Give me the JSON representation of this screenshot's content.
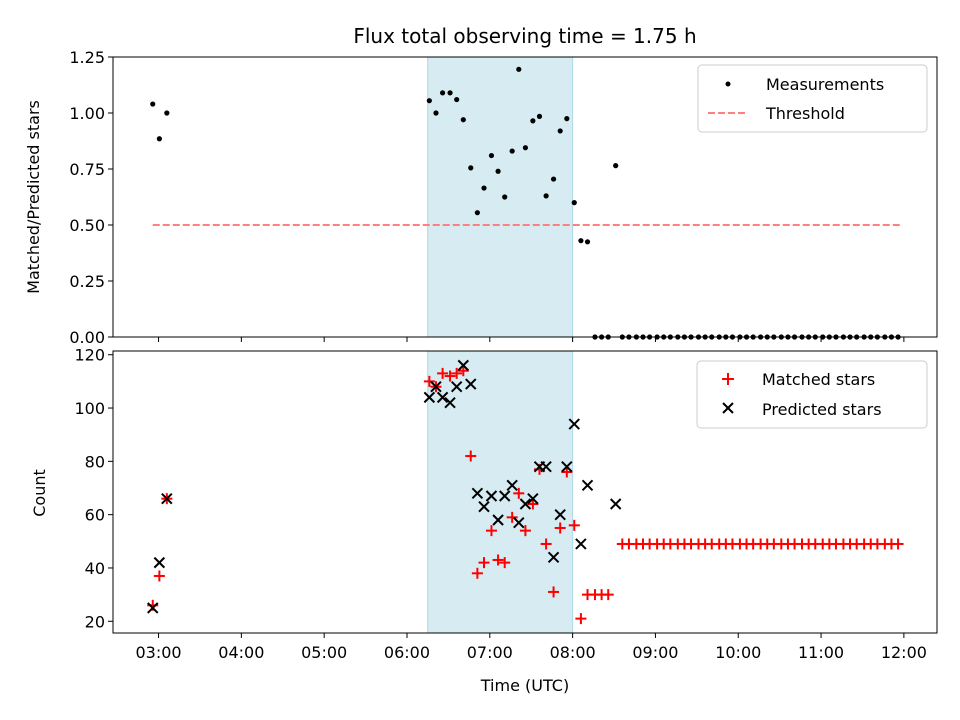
{
  "chart_data": {
    "type": "scatter",
    "title": "Flux total observing time = 1.75 h",
    "xlabel": "Time (UTC)",
    "x_axis": {
      "range_hours": [
        2.45,
        12.4
      ],
      "ticks": [
        {
          "value": 3,
          "label": "03:00"
        },
        {
          "value": 4,
          "label": "04:00"
        },
        {
          "value": 5,
          "label": "05:00"
        },
        {
          "value": 6,
          "label": "06:00"
        },
        {
          "value": 7,
          "label": "07:00"
        },
        {
          "value": 8,
          "label": "08:00"
        },
        {
          "value": 9,
          "label": "09:00"
        },
        {
          "value": 10,
          "label": "10:00"
        },
        {
          "value": 11,
          "label": "11:00"
        },
        {
          "value": 12,
          "label": "12:00"
        }
      ]
    },
    "shaded_interval_hours": [
      6.25,
      8.0
    ],
    "shade_color": "#add8e6",
    "top_panel": {
      "ylabel": "Matched/Predicted stars",
      "ylim": [
        0,
        1.25
      ],
      "yticks": [
        {
          "value": 0,
          "label": "0.00"
        },
        {
          "value": 0.25,
          "label": "0.25"
        },
        {
          "value": 0.5,
          "label": "0.50"
        },
        {
          "value": 0.75,
          "label": "0.75"
        },
        {
          "value": 1.0,
          "label": "1.00"
        },
        {
          "value": 1.25,
          "label": "1.25"
        }
      ],
      "legend": {
        "placement": "upper-right",
        "entries": [
          "Measurements",
          "Threshold"
        ]
      },
      "threshold": {
        "name": "Threshold",
        "value": 0.5,
        "x_range": [
          2.93,
          11.95
        ],
        "color": "#ff7f7f"
      },
      "measurements": {
        "name": "Measurements",
        "color": "#000000",
        "points": [
          [
            2.93,
            1.04
          ],
          [
            3.01,
            0.885
          ],
          [
            3.1,
            1.0
          ],
          [
            6.27,
            1.055
          ],
          [
            6.35,
            1.0
          ],
          [
            6.43,
            1.09
          ],
          [
            6.52,
            1.09
          ],
          [
            6.6,
            1.06
          ],
          [
            6.68,
            0.97
          ],
          [
            6.77,
            0.755
          ],
          [
            6.85,
            0.555
          ],
          [
            6.93,
            0.665
          ],
          [
            7.02,
            0.81
          ],
          [
            7.1,
            0.74
          ],
          [
            7.18,
            0.625
          ],
          [
            7.27,
            0.83
          ],
          [
            7.35,
            1.195
          ],
          [
            7.43,
            0.845
          ],
          [
            7.52,
            0.965
          ],
          [
            7.6,
            0.985
          ],
          [
            7.68,
            0.63
          ],
          [
            7.77,
            0.705
          ],
          [
            7.85,
            0.92
          ],
          [
            7.93,
            0.975
          ],
          [
            8.02,
            0.6
          ],
          [
            8.1,
            0.43
          ],
          [
            8.18,
            0.425
          ],
          [
            8.27,
            0.0
          ],
          [
            8.35,
            0.0
          ],
          [
            8.43,
            0.0
          ],
          [
            8.52,
            0.765
          ],
          [
            8.6,
            0.0
          ],
          [
            8.68,
            0.0
          ],
          [
            8.77,
            0.0
          ],
          [
            8.85,
            0.0
          ],
          [
            8.93,
            0.0
          ],
          [
            9.02,
            0.0
          ],
          [
            9.1,
            0.0
          ],
          [
            9.18,
            0.0
          ],
          [
            9.27,
            0.0
          ],
          [
            9.35,
            0.0
          ],
          [
            9.43,
            0.0
          ],
          [
            9.52,
            0.0
          ],
          [
            9.6,
            0.0
          ],
          [
            9.68,
            0.0
          ],
          [
            9.77,
            0.0
          ],
          [
            9.85,
            0.0
          ],
          [
            9.93,
            0.0
          ],
          [
            10.02,
            0.0
          ],
          [
            10.1,
            0.0
          ],
          [
            10.18,
            0.0
          ],
          [
            10.27,
            0.0
          ],
          [
            10.35,
            0.0
          ],
          [
            10.43,
            0.0
          ],
          [
            10.52,
            0.0
          ],
          [
            10.6,
            0.0
          ],
          [
            10.68,
            0.0
          ],
          [
            10.77,
            0.0
          ],
          [
            10.85,
            0.0
          ],
          [
            10.93,
            0.0
          ],
          [
            11.02,
            0.0
          ],
          [
            11.1,
            0.0
          ],
          [
            11.18,
            0.0
          ],
          [
            11.27,
            0.0
          ],
          [
            11.35,
            0.0
          ],
          [
            11.43,
            0.0
          ],
          [
            11.52,
            0.0
          ],
          [
            11.6,
            0.0
          ],
          [
            11.68,
            0.0
          ],
          [
            11.77,
            0.0
          ],
          [
            11.85,
            0.0
          ],
          [
            11.93,
            0.0
          ]
        ]
      }
    },
    "bottom_panel": {
      "ylabel": "Count",
      "ylim": [
        15.6,
        121.4
      ],
      "yticks": [
        {
          "value": 20,
          "label": "20"
        },
        {
          "value": 40,
          "label": "40"
        },
        {
          "value": 60,
          "label": "60"
        },
        {
          "value": 80,
          "label": "80"
        },
        {
          "value": 100,
          "label": "100"
        },
        {
          "value": 120,
          "label": "120"
        }
      ],
      "legend": {
        "placement": "upper-right",
        "entries": [
          "Matched stars",
          "Predicted stars"
        ]
      },
      "series": [
        {
          "name": "Matched stars",
          "marker": "plus",
          "color": "#ff0000",
          "points": [
            [
              2.93,
              26
            ],
            [
              3.01,
              37
            ],
            [
              3.1,
              66
            ],
            [
              6.27,
              110
            ],
            [
              6.35,
              108
            ],
            [
              6.43,
              113
            ],
            [
              6.52,
              112
            ],
            [
              6.6,
              113
            ],
            [
              6.68,
              114
            ],
            [
              6.77,
              82
            ],
            [
              6.85,
              38
            ],
            [
              6.93,
              42
            ],
            [
              7.02,
              54
            ],
            [
              7.1,
              43
            ],
            [
              7.18,
              42
            ],
            [
              7.27,
              59
            ],
            [
              7.35,
              68
            ],
            [
              7.43,
              54
            ],
            [
              7.52,
              64
            ],
            [
              7.6,
              77
            ],
            [
              7.68,
              49
            ],
            [
              7.77,
              31
            ],
            [
              7.85,
              55
            ],
            [
              7.93,
              76
            ],
            [
              8.02,
              56
            ],
            [
              8.1,
              21
            ],
            [
              8.18,
              30
            ],
            [
              8.27,
              30
            ],
            [
              8.35,
              30
            ],
            [
              8.43,
              30
            ],
            [
              8.6,
              49
            ],
            [
              8.68,
              49
            ],
            [
              8.77,
              49
            ],
            [
              8.85,
              49
            ],
            [
              8.93,
              49
            ],
            [
              9.02,
              49
            ],
            [
              9.1,
              49
            ],
            [
              9.18,
              49
            ],
            [
              9.27,
              49
            ],
            [
              9.35,
              49
            ],
            [
              9.43,
              49
            ],
            [
              9.52,
              49
            ],
            [
              9.6,
              49
            ],
            [
              9.68,
              49
            ],
            [
              9.77,
              49
            ],
            [
              9.85,
              49
            ],
            [
              9.93,
              49
            ],
            [
              10.02,
              49
            ],
            [
              10.1,
              49
            ],
            [
              10.18,
              49
            ],
            [
              10.27,
              49
            ],
            [
              10.35,
              49
            ],
            [
              10.43,
              49
            ],
            [
              10.52,
              49
            ],
            [
              10.6,
              49
            ],
            [
              10.68,
              49
            ],
            [
              10.77,
              49
            ],
            [
              10.85,
              49
            ],
            [
              10.93,
              49
            ],
            [
              11.02,
              49
            ],
            [
              11.1,
              49
            ],
            [
              11.18,
              49
            ],
            [
              11.27,
              49
            ],
            [
              11.35,
              49
            ],
            [
              11.43,
              49
            ],
            [
              11.52,
              49
            ],
            [
              11.6,
              49
            ],
            [
              11.68,
              49
            ],
            [
              11.77,
              49
            ],
            [
              11.85,
              49
            ],
            [
              11.93,
              49
            ]
          ]
        },
        {
          "name": "Predicted stars",
          "marker": "x",
          "color": "#000000",
          "points": [
            [
              2.93,
              25
            ],
            [
              3.01,
              42
            ],
            [
              3.1,
              66
            ],
            [
              6.27,
              104
            ],
            [
              6.35,
              108
            ],
            [
              6.43,
              104
            ],
            [
              6.52,
              102
            ],
            [
              6.6,
              108
            ],
            [
              6.68,
              116
            ],
            [
              6.77,
              109
            ],
            [
              6.85,
              68
            ],
            [
              6.93,
              63
            ],
            [
              7.02,
              67
            ],
            [
              7.1,
              58
            ],
            [
              7.18,
              67
            ],
            [
              7.27,
              71
            ],
            [
              7.35,
              57
            ],
            [
              7.43,
              64
            ],
            [
              7.52,
              66
            ],
            [
              7.6,
              78
            ],
            [
              7.68,
              78
            ],
            [
              7.77,
              44
            ],
            [
              7.85,
              60
            ],
            [
              7.93,
              78
            ],
            [
              8.02,
              94
            ],
            [
              8.1,
              49
            ],
            [
              8.18,
              71
            ],
            [
              8.52,
              64
            ]
          ]
        }
      ]
    }
  }
}
